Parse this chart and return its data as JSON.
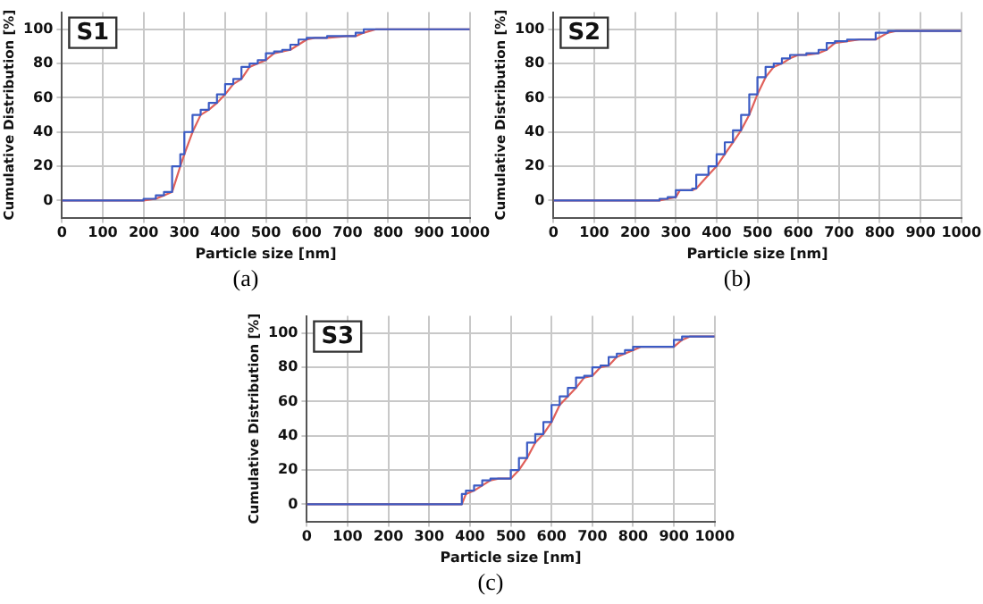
{
  "chart_data": [
    {
      "type": "line",
      "title": "S1",
      "xlabel": "Particle size [nm]",
      "ylabel": "Cumulative Distribution [%]",
      "annotations": [
        "(a)"
      ],
      "x": [
        0,
        200,
        230,
        250,
        270,
        290,
        300,
        320,
        340,
        360,
        380,
        400,
        420,
        440,
        460,
        480,
        500,
        520,
        540,
        560,
        580,
        600,
        620,
        650,
        700,
        720,
        740,
        770,
        1000
      ],
      "series": [
        {
          "type": "step",
          "color": "#3b5bc4",
          "values": [
            0,
            0,
            1,
            3,
            5,
            20,
            27,
            40,
            50,
            53,
            57,
            62,
            68,
            71,
            78,
            80,
            82,
            86,
            87,
            88,
            91,
            94,
            95,
            95,
            96,
            96,
            98,
            100,
            100
          ]
        },
        {
          "type": "line",
          "color": "#e0605a",
          "values": [
            0,
            0,
            1,
            3,
            5,
            20,
            27,
            40,
            50,
            53,
            57,
            62,
            68,
            71,
            78,
            80,
            82,
            86,
            87,
            88,
            91,
            94,
            95,
            95,
            96,
            96,
            98,
            100,
            100
          ]
        }
      ],
      "xlim": [
        0,
        1000
      ],
      "xticks": [
        0,
        100,
        200,
        300,
        400,
        500,
        600,
        700,
        800,
        900,
        1000
      ],
      "ylim": [
        -10,
        110
      ],
      "yticks": [
        0,
        20,
        40,
        60,
        80,
        100
      ],
      "grid": true,
      "legend": false
    },
    {
      "type": "line",
      "title": "S2",
      "xlabel": "Particle size [nm]",
      "ylabel": "Cumulative Distribution [%]",
      "annotations": [
        "(b)"
      ],
      "x": [
        0,
        260,
        280,
        300,
        310,
        340,
        350,
        380,
        400,
        420,
        440,
        460,
        480,
        500,
        520,
        540,
        560,
        580,
        600,
        620,
        650,
        670,
        690,
        720,
        750,
        790,
        820,
        840,
        1000
      ],
      "series": [
        {
          "type": "step",
          "color": "#3b5bc4",
          "values": [
            0,
            0,
            1,
            2,
            6,
            6,
            7,
            15,
            20,
            27,
            34,
            41,
            50,
            62,
            72,
            78,
            80,
            83,
            85,
            85,
            86,
            88,
            92,
            93,
            94,
            94,
            98,
            99,
            99
          ]
        },
        {
          "type": "line",
          "color": "#e0605a",
          "values": [
            0,
            0,
            1,
            2,
            6,
            6,
            7,
            15,
            20,
            27,
            34,
            41,
            50,
            62,
            72,
            78,
            80,
            83,
            85,
            85,
            86,
            88,
            92,
            93,
            94,
            94,
            98,
            99,
            99
          ]
        }
      ],
      "xlim": [
        0,
        1000
      ],
      "xticks": [
        0,
        100,
        200,
        300,
        400,
        500,
        600,
        700,
        800,
        900,
        1000
      ],
      "ylim": [
        -10,
        110
      ],
      "yticks": [
        0,
        20,
        40,
        60,
        80,
        100
      ],
      "grid": true,
      "legend": false
    },
    {
      "type": "line",
      "title": "S3",
      "xlabel": "Particle size [nm]",
      "ylabel": "Cumulative Distribution [%]",
      "annotations": [
        "(c)"
      ],
      "x": [
        0,
        380,
        390,
        410,
        430,
        450,
        470,
        500,
        520,
        540,
        560,
        580,
        600,
        620,
        640,
        660,
        680,
        700,
        720,
        740,
        760,
        780,
        800,
        820,
        900,
        920,
        940,
        1000
      ],
      "series": [
        {
          "type": "step",
          "color": "#3b5bc4",
          "values": [
            0,
            0,
            6,
            8,
            11,
            14,
            15,
            15,
            20,
            27,
            36,
            41,
            48,
            58,
            63,
            68,
            74,
            75,
            80,
            81,
            86,
            88,
            90,
            92,
            92,
            96,
            98,
            98
          ]
        },
        {
          "type": "line",
          "color": "#e0605a",
          "values": [
            0,
            0,
            6,
            8,
            11,
            14,
            15,
            15,
            20,
            27,
            36,
            41,
            48,
            58,
            63,
            68,
            74,
            75,
            80,
            81,
            86,
            88,
            90,
            92,
            92,
            96,
            98,
            98
          ]
        }
      ],
      "xlim": [
        0,
        1000
      ],
      "xticks": [
        0,
        100,
        200,
        300,
        400,
        500,
        600,
        700,
        800,
        900,
        1000
      ],
      "ylim": [
        -10,
        110
      ],
      "yticks": [
        0,
        20,
        40,
        60,
        80,
        100
      ],
      "grid": true,
      "legend": false
    }
  ]
}
